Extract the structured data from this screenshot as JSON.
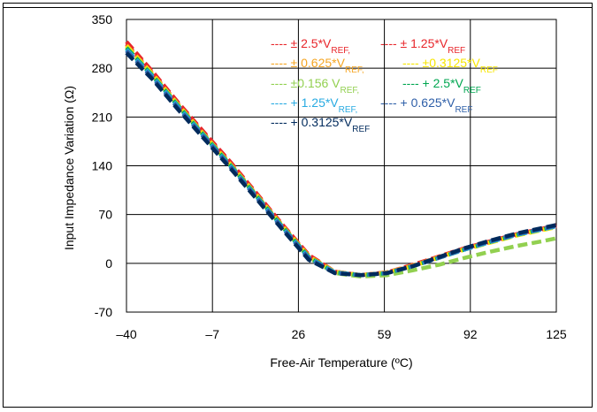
{
  "chart_data": {
    "type": "line",
    "title": "",
    "xlabel": "Free-Air Temperature (ºC)",
    "ylabel": "Input Impedance Variation (Ω)",
    "xlim": [
      -40,
      125
    ],
    "ylim": [
      -70,
      350
    ],
    "x_ticks": [
      "–40",
      "–7",
      "26",
      "59",
      "92",
      "125"
    ],
    "y_ticks": [
      "350",
      "280",
      "210",
      "140",
      "70",
      "0",
      "-70"
    ],
    "grid": true,
    "legend": "inside top-right",
    "series": [
      {
        "name": "± 2.5*V",
        "sub": "REF,",
        "color": "#e8262b",
        "points": [
          [
            -40,
            318
          ],
          [
            -30,
            275
          ],
          [
            -20,
            230
          ],
          [
            -10,
            187
          ],
          [
            0,
            145
          ],
          [
            10,
            100
          ],
          [
            20,
            55
          ],
          [
            30,
            12
          ],
          [
            40,
            -12
          ],
          [
            50,
            -17
          ],
          [
            60,
            -13
          ],
          [
            70,
            -2
          ],
          [
            80,
            10
          ],
          [
            90,
            22
          ],
          [
            100,
            32
          ],
          [
            110,
            42
          ],
          [
            120,
            50
          ],
          [
            125,
            55
          ]
        ]
      },
      {
        "name": "± 1.25*V",
        "sub": "REF",
        "color": "#e8262b",
        "points": [
          [
            -40,
            315
          ],
          [
            -30,
            273
          ],
          [
            -20,
            228
          ],
          [
            -10,
            185
          ],
          [
            0,
            143
          ],
          [
            10,
            98
          ],
          [
            20,
            54
          ],
          [
            30,
            11
          ],
          [
            40,
            -12
          ],
          [
            50,
            -17
          ],
          [
            60,
            -13
          ],
          [
            70,
            -3
          ],
          [
            80,
            9
          ],
          [
            90,
            21
          ],
          [
            100,
            31
          ],
          [
            110,
            41
          ],
          [
            120,
            49
          ],
          [
            125,
            53
          ]
        ]
      },
      {
        "name": "± 0.625*V",
        "sub": "REF,",
        "color": "#f5a623",
        "points": [
          [
            -40,
            313
          ],
          [
            -30,
            272
          ],
          [
            -20,
            227
          ],
          [
            -10,
            184
          ],
          [
            0,
            142
          ],
          [
            10,
            98
          ],
          [
            20,
            53
          ],
          [
            30,
            10
          ],
          [
            40,
            -12
          ],
          [
            50,
            -17
          ],
          [
            60,
            -13
          ],
          [
            70,
            -3
          ],
          [
            80,
            9
          ],
          [
            90,
            21
          ],
          [
            100,
            31
          ],
          [
            110,
            41
          ],
          [
            120,
            49
          ],
          [
            125,
            53
          ]
        ]
      },
      {
        "name": "±0.3125*V",
        "sub": "REF",
        "color": "#f7e600",
        "points": [
          [
            -40,
            312
          ],
          [
            -30,
            271
          ],
          [
            -20,
            227
          ],
          [
            -10,
            183
          ],
          [
            0,
            141
          ],
          [
            10,
            97
          ],
          [
            20,
            53
          ],
          [
            30,
            10
          ],
          [
            40,
            -13
          ],
          [
            50,
            -17
          ],
          [
            60,
            -14
          ],
          [
            70,
            -4
          ],
          [
            80,
            8
          ],
          [
            90,
            20
          ],
          [
            100,
            30
          ],
          [
            110,
            40
          ],
          [
            120,
            48
          ],
          [
            125,
            52
          ]
        ]
      },
      {
        "name": "±0.156 V",
        "sub": "REF,",
        "color": "#92d050",
        "points": [
          [
            -40,
            310
          ],
          [
            -30,
            270
          ],
          [
            -20,
            226
          ],
          [
            -10,
            183
          ],
          [
            0,
            141
          ],
          [
            10,
            97
          ],
          [
            20,
            52
          ],
          [
            30,
            8
          ],
          [
            40,
            -14
          ],
          [
            50,
            -19
          ],
          [
            60,
            -17
          ],
          [
            70,
            -10
          ],
          [
            80,
            -2
          ],
          [
            90,
            8
          ],
          [
            100,
            17
          ],
          [
            110,
            25
          ],
          [
            120,
            32
          ],
          [
            125,
            36
          ]
        ]
      },
      {
        "name": "+ 2.5*V",
        "sub": "REF",
        "color": "#00a650",
        "points": [
          [
            -40,
            309
          ],
          [
            -30,
            269
          ],
          [
            -20,
            225
          ],
          [
            -10,
            182
          ],
          [
            0,
            140
          ],
          [
            10,
            96
          ],
          [
            20,
            52
          ],
          [
            30,
            9
          ],
          [
            40,
            -13
          ],
          [
            50,
            -17
          ],
          [
            60,
            -14
          ],
          [
            70,
            -4
          ],
          [
            80,
            8
          ],
          [
            90,
            20
          ],
          [
            100,
            31
          ],
          [
            110,
            41
          ],
          [
            120,
            49
          ],
          [
            125,
            53
          ]
        ]
      },
      {
        "name": "+ 1.25*V",
        "sub": "REF,",
        "color": "#29abe2",
        "points": [
          [
            -40,
            307
          ],
          [
            -30,
            268
          ],
          [
            -20,
            224
          ],
          [
            -10,
            181
          ],
          [
            0,
            139
          ],
          [
            10,
            95
          ],
          [
            20,
            51
          ],
          [
            30,
            8
          ],
          [
            40,
            -13
          ],
          [
            50,
            -17
          ],
          [
            60,
            -14
          ],
          [
            70,
            -4
          ],
          [
            80,
            8
          ],
          [
            90,
            20
          ],
          [
            100,
            31
          ],
          [
            110,
            41
          ],
          [
            120,
            49
          ],
          [
            125,
            53
          ]
        ]
      },
      {
        "name": "+ 0.625*V",
        "sub": "REF",
        "color": "#2e5fa8",
        "points": [
          [
            -40,
            305
          ],
          [
            -30,
            266
          ],
          [
            -20,
            222
          ],
          [
            -10,
            180
          ],
          [
            0,
            138
          ],
          [
            10,
            94
          ],
          [
            20,
            50
          ],
          [
            30,
            7
          ],
          [
            40,
            -14
          ],
          [
            50,
            -17
          ],
          [
            60,
            -14
          ],
          [
            70,
            -4
          ],
          [
            80,
            8
          ],
          [
            90,
            21
          ],
          [
            100,
            32
          ],
          [
            110,
            42
          ],
          [
            120,
            50
          ],
          [
            125,
            54
          ]
        ]
      },
      {
        "name": "+ 0.3125*V",
        "sub": "REF",
        "color": "#002a5c",
        "points": [
          [
            -40,
            302
          ],
          [
            -30,
            264
          ],
          [
            -20,
            220
          ],
          [
            -10,
            178
          ],
          [
            0,
            136
          ],
          [
            10,
            92
          ],
          [
            20,
            48
          ],
          [
            30,
            5
          ],
          [
            40,
            -14
          ],
          [
            50,
            -17
          ],
          [
            60,
            -14
          ],
          [
            70,
            -4
          ],
          [
            80,
            9
          ],
          [
            90,
            22
          ],
          [
            100,
            33
          ],
          [
            110,
            43
          ],
          [
            120,
            51
          ],
          [
            125,
            55
          ]
        ]
      }
    ]
  }
}
